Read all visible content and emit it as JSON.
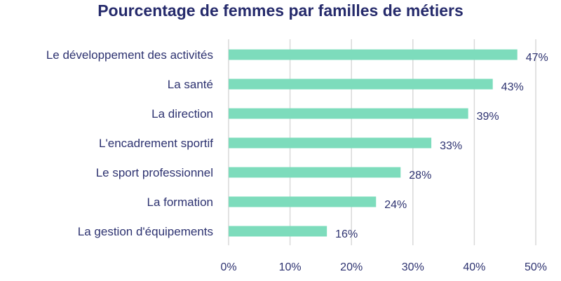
{
  "chart_data": {
    "type": "bar",
    "orientation": "horizontal",
    "title": "Pourcentage de femmes par familles de métiers",
    "categories": [
      "Le développement des activités",
      "La santé",
      "La direction",
      "L'encadrement sportif",
      "Le sport professionnel",
      "La formation",
      "La gestion d'équipements"
    ],
    "values": [
      47,
      43,
      39,
      33,
      28,
      24,
      16
    ],
    "value_labels": [
      "47%",
      "43%",
      "39%",
      "33%",
      "28%",
      "24%",
      "16%"
    ],
    "xlim": [
      0,
      50
    ],
    "x_ticks": [
      0,
      10,
      20,
      30,
      40,
      50
    ],
    "x_tick_labels": [
      "0%",
      "10%",
      "20%",
      "30%",
      "40%",
      "50%"
    ],
    "grid": "vertical",
    "legend": "none",
    "colors": {
      "bar": "#7ddcbc",
      "text": "#2d3270",
      "title": "#252a6b",
      "grid": "#d9d9d9"
    }
  }
}
